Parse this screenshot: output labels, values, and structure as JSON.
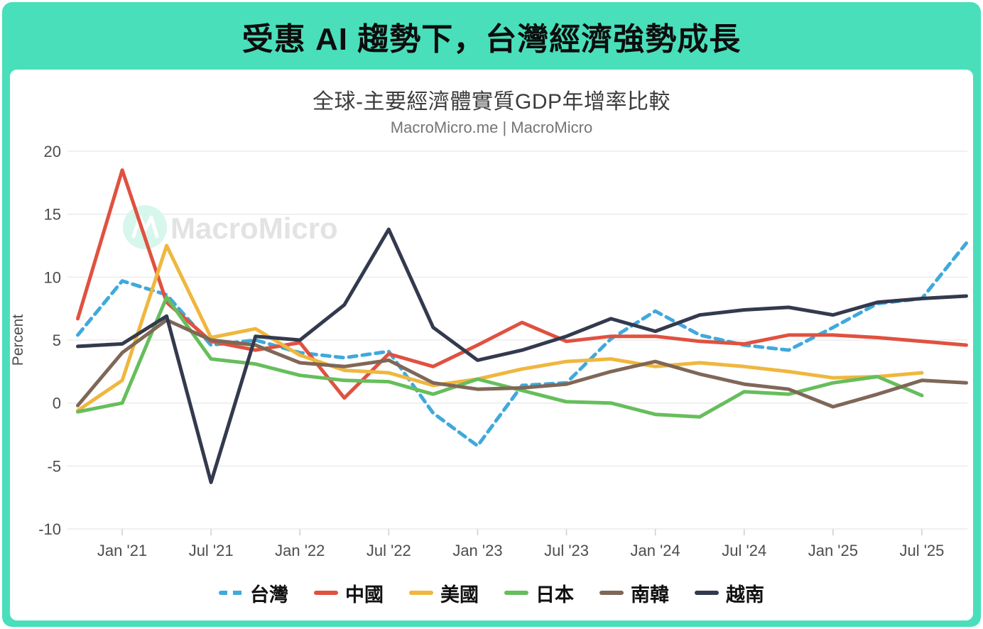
{
  "banner": {
    "title": "受惠 AI 趨勢下，台灣經濟強勢成長",
    "bg_color": "#4ADFBB"
  },
  "chart": {
    "title": "全球-主要經濟體實質GDP年增率比較",
    "subtitle": "MacroMicro.me | MacroMicro",
    "watermark_text": "MacroMicro"
  },
  "chart_data": {
    "type": "line",
    "title": "全球-主要經濟體實質GDP年增率比較",
    "subtitle": "MacroMicro.me | MacroMicro",
    "ylabel": "Percent",
    "ylim": [
      -10,
      20
    ],
    "y_ticks": [
      20,
      15,
      10,
      5,
      0,
      -5,
      -10
    ],
    "grid": "horizontal",
    "legend_position": "bottom",
    "x": [
      "Oct '20",
      "Jan '21",
      "Apr '21",
      "Jul '21",
      "Oct '21",
      "Jan '22",
      "Apr '22",
      "Jul '22",
      "Oct '22",
      "Jan '23",
      "Apr '23",
      "Jul '23",
      "Oct '23",
      "Jan '24",
      "Apr '24",
      "Jul '24",
      "Oct '24",
      "Jan '25",
      "Apr '25",
      "Jul '25",
      "Oct '25"
    ],
    "x_tick_labels": [
      "Jan '21",
      "Jul '21",
      "Jan '22",
      "Jul '22",
      "Jan '23",
      "Jul '23",
      "Jan '24",
      "Jul '24",
      "Jan '25",
      "Jul '25"
    ],
    "x_tick_indices": [
      1,
      3,
      5,
      7,
      9,
      11,
      13,
      15,
      17,
      19
    ],
    "series": [
      {
        "name": "台灣",
        "color": "#3FA9DC",
        "dashed": true,
        "values": [
          5.4,
          9.7,
          8.6,
          4.6,
          5.0,
          4.0,
          3.6,
          4.1,
          -0.8,
          -3.4,
          1.4,
          1.6,
          5.1,
          7.3,
          5.4,
          4.6,
          4.2,
          6.0,
          7.9,
          8.3,
          12.7
        ]
      },
      {
        "name": "中國",
        "color": "#E05140",
        "dashed": false,
        "values": [
          6.7,
          18.5,
          8.0,
          4.9,
          4.2,
          4.8,
          0.4,
          3.9,
          2.9,
          4.6,
          6.4,
          4.9,
          5.3,
          5.3,
          4.9,
          4.7,
          5.4,
          5.4,
          5.2,
          4.9,
          4.6
        ]
      },
      {
        "name": "美國",
        "color": "#EFB73F",
        "dashed": false,
        "values": [
          -0.6,
          1.8,
          12.5,
          5.2,
          5.9,
          3.8,
          2.6,
          2.4,
          1.4,
          1.9,
          2.7,
          3.3,
          3.5,
          2.9,
          3.2,
          2.9,
          2.5,
          2.0,
          2.1,
          2.4,
          null
        ]
      },
      {
        "name": "日本",
        "color": "#66BE5C",
        "dashed": false,
        "values": [
          -0.7,
          0.0,
          8.4,
          3.5,
          3.1,
          2.2,
          1.8,
          1.7,
          0.7,
          1.9,
          1.0,
          0.1,
          0.0,
          -0.9,
          -1.1,
          0.9,
          0.7,
          1.6,
          2.1,
          0.6,
          null
        ]
      },
      {
        "name": "南韓",
        "color": "#7F6757",
        "dashed": false,
        "values": [
          -0.2,
          4.0,
          6.6,
          5.0,
          4.6,
          3.2,
          2.9,
          3.4,
          1.6,
          1.1,
          1.2,
          1.5,
          2.5,
          3.3,
          2.3,
          1.5,
          1.1,
          -0.3,
          0.7,
          1.8,
          1.6
        ]
      },
      {
        "name": "越南",
        "color": "#333A4E",
        "dashed": false,
        "values": [
          4.5,
          4.7,
          6.9,
          -6.3,
          5.3,
          5.0,
          7.8,
          13.8,
          6.0,
          3.4,
          4.2,
          5.3,
          6.7,
          5.7,
          7.0,
          7.4,
          7.6,
          7.0,
          8.0,
          8.3,
          8.5
        ]
      }
    ]
  },
  "colors": {
    "banner_bg": "#4ADFBB",
    "gridline": "#ebebeb",
    "tick_text": "#4d4d4d",
    "watermark_circle": "#d7f6ec",
    "watermark_text": "#e3e3e3"
  }
}
